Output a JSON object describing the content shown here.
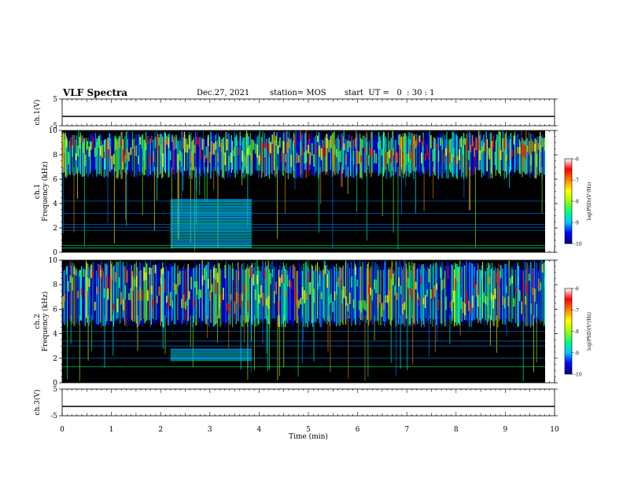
{
  "header": {
    "title": "VLF Spectra",
    "date": "Dec.27, 2021",
    "station": "station= MOS",
    "start_ut": "start  UT =   0  : 30 : 1"
  },
  "colors": {
    "spectrogram_background": "#000000",
    "colormap": [
      "#00008f",
      "#0000ff",
      "#0080ff",
      "#00ffff",
      "#00ff80",
      "#80ff00",
      "#ffff00",
      "#ff8000",
      "#ff0000",
      "#ffffff"
    ]
  },
  "chart_data": [
    {
      "id": "ch1_voltage",
      "type": "line",
      "ylabel": "ch.1(V)",
      "ylim": [
        -5,
        5
      ],
      "yticks": [
        "5",
        "-5"
      ],
      "x": [
        0,
        10
      ],
      "y": [
        -1.5,
        -1.5
      ]
    },
    {
      "id": "ch1_spectrogram",
      "type": "heatmap",
      "ylabel": "ch.1\nFrequency (kHz)",
      "ylim": [
        0,
        10
      ],
      "yticks": [
        "0",
        "2",
        "4",
        "6",
        "8",
        "10"
      ],
      "xlim": [
        0,
        10
      ],
      "emission_band_khz": [
        6,
        10
      ],
      "interference_block": {
        "t_min": [
          2.2,
          3.85
        ],
        "f_khz": [
          0.4,
          4.4
        ]
      },
      "colorbar": {
        "label": "log(PSD)(V²/Hz)",
        "range": [
          -10,
          -6
        ],
        "ticks": [
          "-6",
          "-7",
          "-8",
          "-9",
          "-10"
        ]
      }
    },
    {
      "id": "ch2_spectrogram",
      "type": "heatmap",
      "ylabel": "ch.2\nFrequency (kHz)",
      "ylim": [
        0,
        10
      ],
      "yticks": [
        "0",
        "2",
        "4",
        "6",
        "8",
        "10"
      ],
      "xlim": [
        0,
        10
      ],
      "emission_band_khz": [
        4.5,
        10
      ],
      "interference_block": {
        "t_min": [
          2.2,
          3.85
        ],
        "f_khz": [
          1.8,
          2.8
        ]
      },
      "colorbar": {
        "label": "log(PSD)(V²/Hz)",
        "range": [
          -10,
          -6
        ],
        "ticks": [
          "-6",
          "-7",
          "-8",
          "-9",
          "-10"
        ]
      }
    },
    {
      "id": "ch3_voltage",
      "type": "line",
      "ylabel": "ch.3(V)",
      "ylim": [
        -5,
        5
      ],
      "yticks": [
        "5",
        "-5"
      ],
      "x": [
        0,
        10
      ],
      "y": [
        -1.5,
        -1.5
      ]
    }
  ],
  "x_axis": {
    "label": "Time (min)",
    "range": [
      0,
      10
    ],
    "ticks": [
      "0",
      "1",
      "2",
      "3",
      "4",
      "5",
      "6",
      "7",
      "8",
      "9",
      "10"
    ]
  }
}
